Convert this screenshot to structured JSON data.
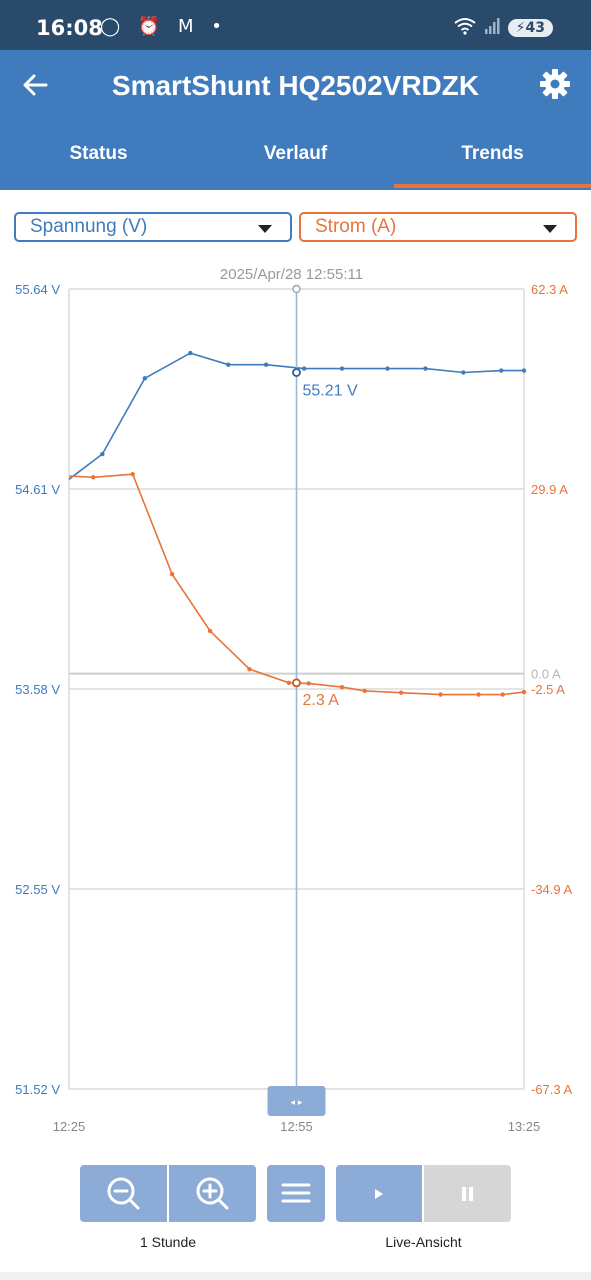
{
  "status_bar": {
    "time": "16:08",
    "left_icons": "◯ ⏰ M •",
    "battery": "43"
  },
  "header": {
    "title": "SmartShunt HQ2502VRDZK"
  },
  "tabs": [
    {
      "label": "Status"
    },
    {
      "label": "Verlauf"
    },
    {
      "label": "Trends",
      "active": true
    }
  ],
  "selectors": {
    "left": "Spannung (V)",
    "right": "Strom (A)"
  },
  "chart_data": {
    "type": "line",
    "cursor_timestamp": "2025/Apr/28 12:55:11",
    "x_ticks": [
      "12:25",
      "12:55",
      "13:25"
    ],
    "y_left_ticks": [
      "55.64 V",
      "54.61 V",
      "53.58 V",
      "52.55 V",
      "51.52 V"
    ],
    "y_right_ticks": [
      "62.3 A",
      "29.9 A",
      "-2.5 A",
      "-34.9 A",
      "-67.3 A"
    ],
    "zero_label": "0.0 A",
    "ylim_left": [
      51.52,
      55.64
    ],
    "ylim_right": [
      -67.3,
      62.3
    ],
    "series": [
      {
        "name": "Spannung (V)",
        "axis": "left",
        "color": "#3f7bbd",
        "x": [
          0,
          2.2,
          5,
          8,
          10.5,
          13,
          15.5,
          18,
          21,
          23.5,
          26,
          28.5,
          30
        ],
        "values": [
          54.66,
          54.79,
          55.18,
          55.31,
          55.25,
          55.25,
          55.23,
          55.23,
          55.23,
          55.23,
          55.21,
          55.22,
          55.22
        ]
      },
      {
        "name": "Strom (A)",
        "axis": "right",
        "color": "#e8743b",
        "x": [
          0,
          1.6,
          4.2,
          6.8,
          9.3,
          11.9,
          14.5,
          15.8,
          18,
          19.5,
          21.9,
          24.5,
          27,
          28.6,
          30
        ],
        "values": [
          32.0,
          31.8,
          32.3,
          16.1,
          6.9,
          0.7,
          -1.5,
          -1.6,
          -2.2,
          -2.8,
          -3.1,
          -3.4,
          -3.4,
          -3.4,
          -3.0
        ]
      }
    ],
    "cursor": {
      "x": 15,
      "voltage_label": "55.21 V",
      "current_label": "2.3 A"
    }
  },
  "controls": {
    "zoom_label": "1 Stunde",
    "live_label": "Live-Ansicht"
  }
}
